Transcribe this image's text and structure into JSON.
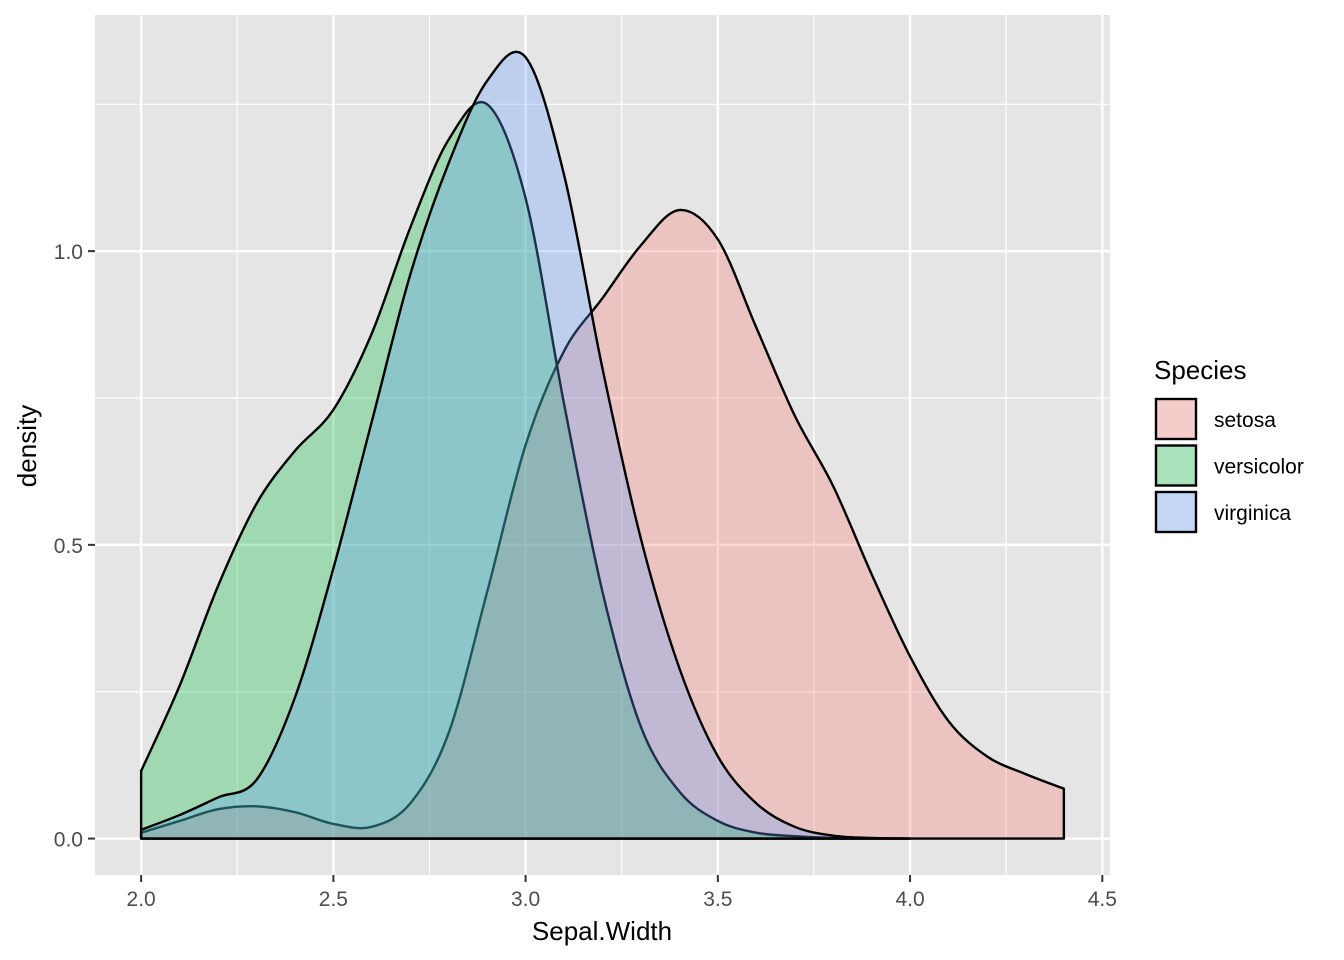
{
  "chart_data": {
    "type": "area",
    "subtype": "density",
    "xlabel": "Sepal.Width",
    "ylabel": "density",
    "xlim": [
      1.88,
      4.52
    ],
    "ylim": [
      -0.062,
      1.402
    ],
    "x_ticks": [
      2.0,
      2.5,
      3.0,
      3.5,
      4.0,
      4.5
    ],
    "x_tick_labels": [
      "2.0",
      "2.5",
      "3.0",
      "3.5",
      "4.0",
      "4.5"
    ],
    "y_ticks": [
      0.0,
      0.5,
      1.0
    ],
    "y_tick_labels": [
      "0.0",
      "0.5",
      "1.0"
    ],
    "x_minor_ticks": [
      2.25,
      2.75,
      3.25,
      3.75,
      4.25
    ],
    "y_minor_ticks": [
      0.25,
      0.75,
      1.25
    ],
    "grid": true,
    "legend": {
      "title": "Species",
      "position": "right"
    },
    "series": [
      {
        "name": "setosa",
        "color": "#F8766D",
        "x": [
          2.0,
          2.1,
          2.2,
          2.3,
          2.4,
          2.5,
          2.6,
          2.7,
          2.8,
          2.9,
          3.0,
          3.1,
          3.2,
          3.3,
          3.4,
          3.5,
          3.6,
          3.7,
          3.8,
          3.9,
          4.0,
          4.1,
          4.2,
          4.3,
          4.4
        ],
        "y": [
          0.01,
          0.03,
          0.05,
          0.055,
          0.045,
          0.025,
          0.02,
          0.06,
          0.18,
          0.42,
          0.67,
          0.83,
          0.92,
          1.01,
          1.07,
          1.02,
          0.87,
          0.72,
          0.6,
          0.45,
          0.31,
          0.2,
          0.14,
          0.11,
          0.085
        ]
      },
      {
        "name": "versicolor",
        "color": "#00BA38",
        "x": [
          2.0,
          2.1,
          2.2,
          2.3,
          2.4,
          2.5,
          2.6,
          2.7,
          2.8,
          2.9,
          3.0,
          3.1,
          3.2,
          3.3,
          3.4,
          3.5,
          3.6,
          3.7,
          3.8,
          3.9,
          4.0
        ],
        "y": [
          0.115,
          0.26,
          0.43,
          0.57,
          0.66,
          0.73,
          0.86,
          1.04,
          1.19,
          1.25,
          1.09,
          0.74,
          0.42,
          0.19,
          0.08,
          0.03,
          0.01,
          0.004,
          0.001,
          0.0003,
          0.0
        ]
      },
      {
        "name": "virginica",
        "color": "#619CFF",
        "x": [
          2.0,
          2.1,
          2.2,
          2.3,
          2.4,
          2.5,
          2.6,
          2.7,
          2.8,
          2.9,
          3.0,
          3.1,
          3.2,
          3.3,
          3.4,
          3.5,
          3.6,
          3.7,
          3.8,
          3.9,
          4.0
        ],
        "y": [
          0.015,
          0.04,
          0.07,
          0.1,
          0.24,
          0.46,
          0.71,
          0.96,
          1.15,
          1.29,
          1.33,
          1.13,
          0.8,
          0.51,
          0.29,
          0.14,
          0.06,
          0.02,
          0.005,
          0.001,
          0.0
        ]
      }
    ]
  },
  "theme": {
    "panel_background": "#E5E5E5",
    "grid_color": "#FFFFFF",
    "fill_opacity": 0.3
  }
}
